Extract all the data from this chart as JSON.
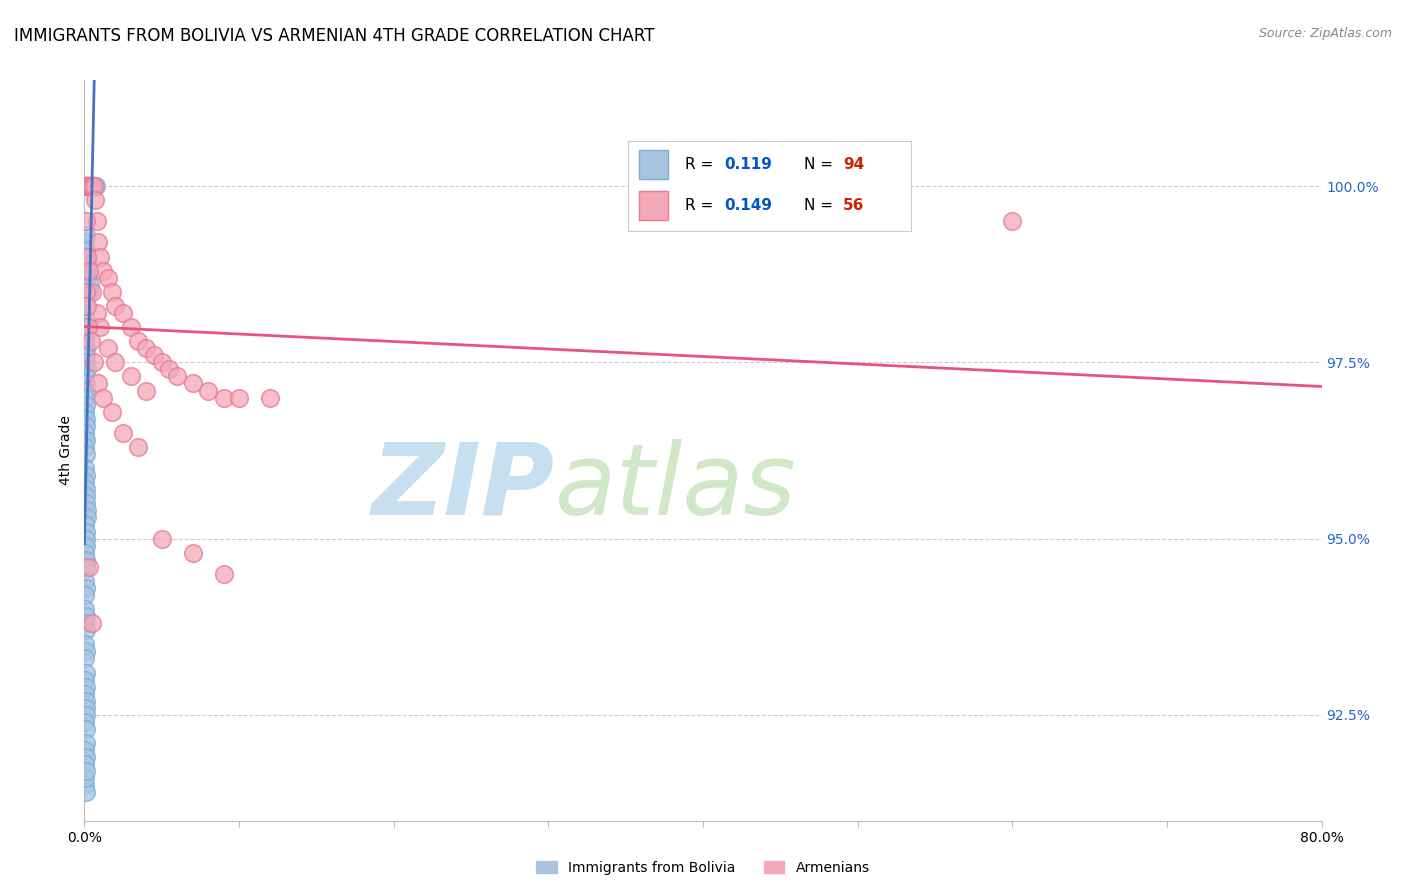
{
  "title": "IMMIGRANTS FROM BOLIVIA VS ARMENIAN 4TH GRADE CORRELATION CHART",
  "source": "Source: ZipAtlas.com",
  "ylabel": "4th Grade",
  "yticks": [
    92.5,
    95.0,
    97.5,
    100.0
  ],
  "xlim": [
    0.0,
    80.0
  ],
  "ylim": [
    91.0,
    101.5
  ],
  "bolivia_x": [
    0.05,
    0.08,
    0.1,
    0.12,
    0.15,
    0.18,
    0.2,
    0.22,
    0.25,
    0.28,
    0.3,
    0.35,
    0.4,
    0.45,
    0.5,
    0.55,
    0.6,
    0.65,
    0.7,
    0.75,
    0.05,
    0.08,
    0.1,
    0.12,
    0.15,
    0.18,
    0.2,
    0.25,
    0.3,
    0.35,
    0.05,
    0.08,
    0.1,
    0.12,
    0.15,
    0.05,
    0.08,
    0.1,
    0.12,
    0.15,
    0.05,
    0.08,
    0.1,
    0.05,
    0.08,
    0.05,
    0.08,
    0.1,
    0.05,
    0.08,
    0.05,
    0.08,
    0.05,
    0.08,
    0.05,
    0.08,
    0.1,
    0.12,
    0.15,
    0.2,
    0.05,
    0.08,
    0.1,
    0.12,
    0.05,
    0.08,
    0.1,
    0.05,
    0.08,
    0.05,
    0.05,
    0.08,
    0.05,
    0.08,
    0.05,
    0.08,
    0.05,
    0.08,
    0.05,
    0.08,
    0.05,
    0.08,
    0.1,
    0.12,
    0.05,
    0.08,
    0.1,
    0.05,
    0.08,
    0.05,
    0.05,
    0.08,
    0.05,
    0.08
  ],
  "bolivia_y": [
    100.0,
    100.0,
    100.0,
    100.0,
    100.0,
    100.0,
    100.0,
    100.0,
    100.0,
    100.0,
    100.0,
    100.0,
    100.0,
    100.0,
    100.0,
    100.0,
    100.0,
    100.0,
    100.0,
    100.0,
    99.2,
    99.3,
    99.1,
    98.9,
    99.0,
    98.8,
    98.7,
    98.9,
    98.5,
    98.6,
    98.2,
    98.3,
    98.1,
    97.9,
    98.0,
    97.8,
    97.7,
    97.6,
    97.5,
    97.4,
    97.3,
    97.2,
    97.1,
    97.0,
    96.9,
    96.8,
    96.7,
    96.6,
    96.5,
    96.4,
    96.3,
    96.2,
    96.0,
    95.9,
    95.8,
    95.7,
    95.6,
    95.5,
    95.4,
    95.3,
    95.2,
    95.1,
    95.0,
    94.9,
    94.8,
    94.7,
    94.6,
    94.4,
    94.3,
    94.2,
    94.0,
    93.9,
    93.8,
    93.7,
    93.5,
    93.4,
    93.3,
    93.1,
    93.0,
    92.9,
    92.8,
    92.7,
    92.6,
    92.5,
    92.4,
    92.3,
    92.1,
    92.0,
    91.9,
    91.8,
    91.5,
    91.4,
    91.6,
    91.7
  ],
  "armenia_x": [
    0.1,
    0.15,
    0.2,
    0.25,
    0.3,
    0.35,
    0.4,
    0.5,
    0.6,
    0.7,
    0.8,
    0.9,
    1.0,
    1.2,
    1.5,
    1.8,
    2.0,
    2.5,
    3.0,
    3.5,
    4.0,
    4.5,
    5.0,
    5.5,
    6.0,
    7.0,
    8.0,
    9.0,
    10.0,
    12.0,
    0.1,
    0.2,
    0.3,
    0.5,
    0.8,
    1.0,
    1.5,
    2.0,
    3.0,
    4.0,
    0.1,
    0.15,
    0.25,
    0.4,
    0.6,
    0.9,
    1.2,
    1.8,
    2.5,
    3.5,
    5.0,
    7.0,
    9.0,
    0.3,
    0.5,
    60.0
  ],
  "armenia_y": [
    100.0,
    100.0,
    100.0,
    100.0,
    100.0,
    100.0,
    100.0,
    100.0,
    100.0,
    99.8,
    99.5,
    99.2,
    99.0,
    98.8,
    98.7,
    98.5,
    98.3,
    98.2,
    98.0,
    97.8,
    97.7,
    97.6,
    97.5,
    97.4,
    97.3,
    97.2,
    97.1,
    97.0,
    97.0,
    97.0,
    99.5,
    99.0,
    98.8,
    98.5,
    98.2,
    98.0,
    97.7,
    97.5,
    97.3,
    97.1,
    98.5,
    98.3,
    98.0,
    97.8,
    97.5,
    97.2,
    97.0,
    96.8,
    96.5,
    96.3,
    95.0,
    94.8,
    94.5,
    94.6,
    93.8,
    99.5
  ],
  "bolivia_line_color": "#4472c4",
  "armenia_line_color": "#e8537a",
  "scatter_bolivia_color": "#a8c4e0",
  "scatter_bolivia_edge": "#7aaed6",
  "scatter_armenia_color": "#f4a8b8",
  "scatter_armenia_edge": "#e87898",
  "grid_color": "#cccccc",
  "watermark_zip_color": "#c8dff0",
  "watermark_atlas_color": "#d0e8c8",
  "title_fontsize": 12,
  "axis_label_fontsize": 10,
  "tick_fontsize": 10,
  "legend_R_color": "#0055cc",
  "legend_N_color": "#cc2200",
  "right_tick_color": "#2266cc"
}
